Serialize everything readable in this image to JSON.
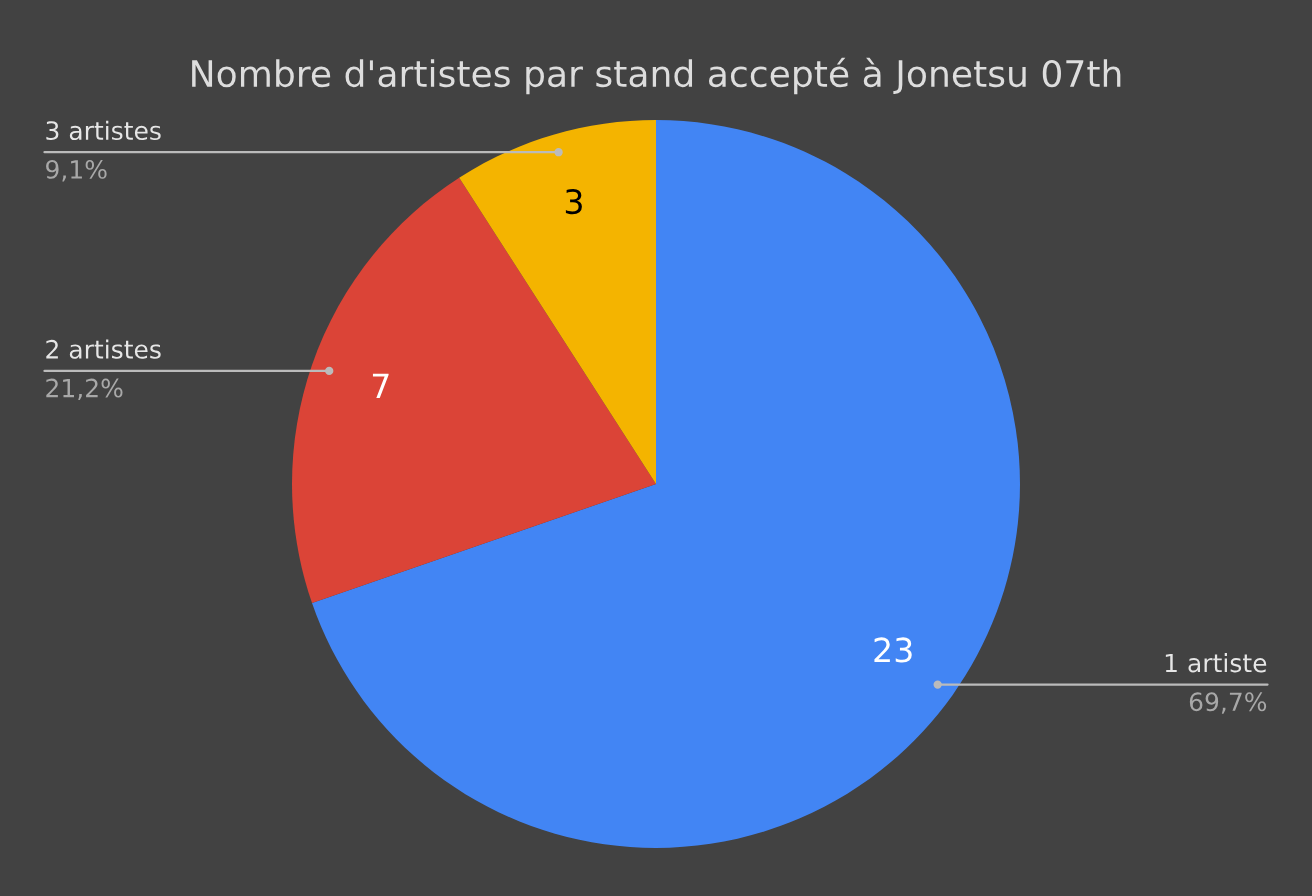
{
  "chart_data": {
    "type": "pie",
    "title": "Nombre d'artistes par stand accepté à Jonetsu 07th",
    "categories": [
      "1 artiste",
      "2 artistes",
      "3 artistes"
    ],
    "values": [
      23,
      7,
      3
    ],
    "colors": [
      "#4285f4",
      "#db4437",
      "#f4b400"
    ],
    "value_labels": [
      "23",
      "7",
      "3"
    ],
    "annotations": [
      "69,7%",
      "21,2%",
      "9,1%"
    ],
    "legend": false
  }
}
